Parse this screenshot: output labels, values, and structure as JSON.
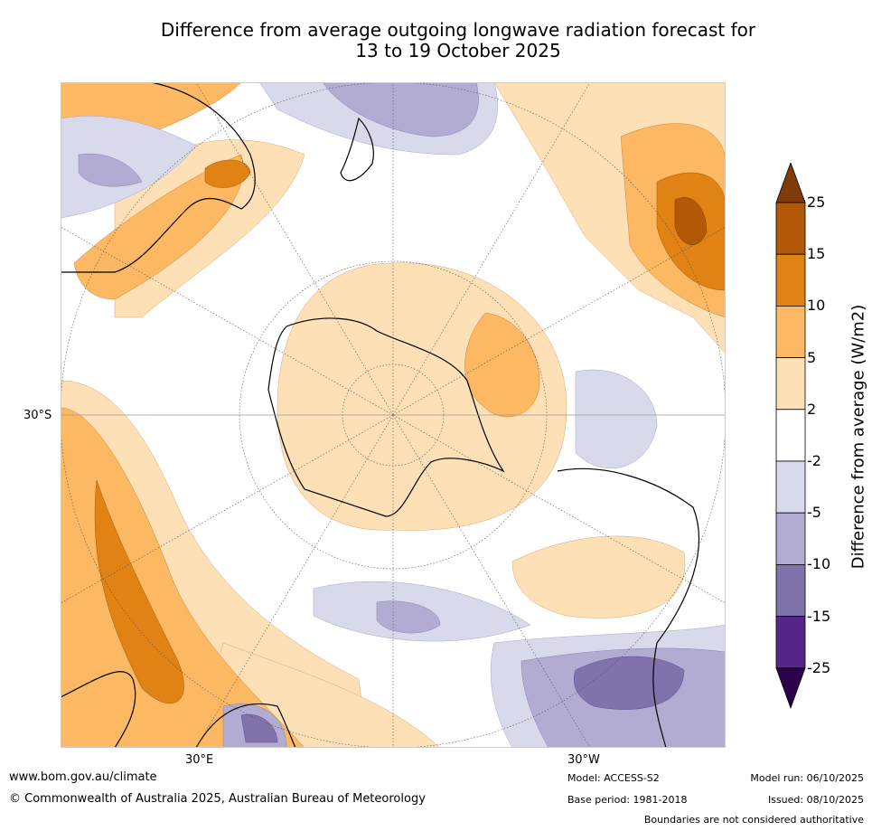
{
  "title": {
    "line1": "Difference from average outgoing longwave radiation forecast for",
    "line2": "13 to 19 October 2025"
  },
  "map": {
    "projection": "south-polar-stereographic",
    "labels": {
      "lat": "30°S",
      "lon_east": "30°E",
      "lon_west": "30°W"
    }
  },
  "legend": {
    "title": "Difference from average (W/m2)",
    "labels": [
      "25",
      "15",
      "10",
      "5",
      "2",
      "-2",
      "-5",
      "-10",
      "-15",
      "-25"
    ],
    "colors": [
      "#7f3b08",
      "#b35806",
      "#e08214",
      "#fdb863",
      "#fee0b6",
      "#ffffff",
      "#d8daeb",
      "#b2abd2",
      "#8073ac",
      "#542788",
      "#2d004b"
    ]
  },
  "footer": {
    "website": "www.bom.gov.au/climate",
    "copyright": "© Commonwealth of Australia 2025, Australian Bureau of Meteorology",
    "model": "Model: ACCESS-S2",
    "base_period": "Base period: 1981-2018",
    "model_run": "Model run: 06/10/2025",
    "issued": "Issued: 08/10/2025",
    "disclaimer": "Boundaries are not considered authoritative"
  }
}
